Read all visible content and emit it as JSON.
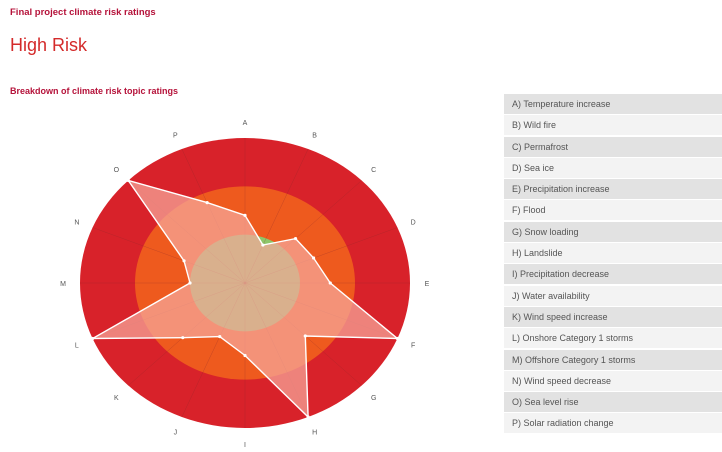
{
  "header": {
    "section_title": "Final project climate risk ratings",
    "rating": "High Risk",
    "breakdown_title": "Breakdown of climate risk topic ratings"
  },
  "colors": {
    "high_zone": "#d8222a",
    "medium_zone": "#ee5a1e",
    "low_zone": "#8dc66a",
    "polygon_fill": "#f7a79b",
    "polygon_stroke": "#ffffff",
    "grid": "#8a2a2a"
  },
  "chart_data": {
    "type": "radar",
    "axes": [
      "A",
      "B",
      "C",
      "D",
      "E",
      "F",
      "G",
      "H",
      "I",
      "J",
      "K",
      "L",
      "M",
      "N",
      "O",
      "P"
    ],
    "axis_names": [
      "A) Temperature increase",
      "B) Wild fire",
      "C) Permafrost",
      "D) Sea ice",
      "E) Precipitation increase",
      "F) Flood",
      "G) Snow loading",
      "H) Landslide",
      "I) Precipitation decrease",
      "J) Water availability",
      "K) Wind speed increase",
      "L) Onshore Category 1 storms",
      "M) Offshore Category 1 storms",
      "N) Wind speed decrease",
      "O) Sea level rise",
      "P) Solar radiation change"
    ],
    "zones": [
      {
        "name": "low",
        "outer": 1.0
      },
      {
        "name": "medium",
        "outer": 2.0
      },
      {
        "name": "high",
        "outer": 3.0
      }
    ],
    "range": [
      0,
      3
    ],
    "values": [
      1.4,
      0.85,
      1.3,
      1.35,
      1.55,
      3.0,
      1.55,
      3.0,
      1.5,
      1.2,
      1.6,
      3.0,
      1.0,
      1.2,
      3.0,
      1.8
    ]
  },
  "legend": {
    "items": [
      "A) Temperature increase",
      "B) Wild fire",
      "C) Permafrost",
      "D) Sea ice",
      "E) Precipitation increase",
      "F) Flood",
      "G) Snow loading",
      "H) Landslide",
      "I) Precipitation decrease",
      "J) Water availability",
      "K) Wind speed increase",
      "L) Onshore Category 1 storms",
      "M) Offshore Category 1 storms",
      "N) Wind speed decrease",
      "O) Sea level rise",
      "P) Solar radiation change"
    ]
  }
}
